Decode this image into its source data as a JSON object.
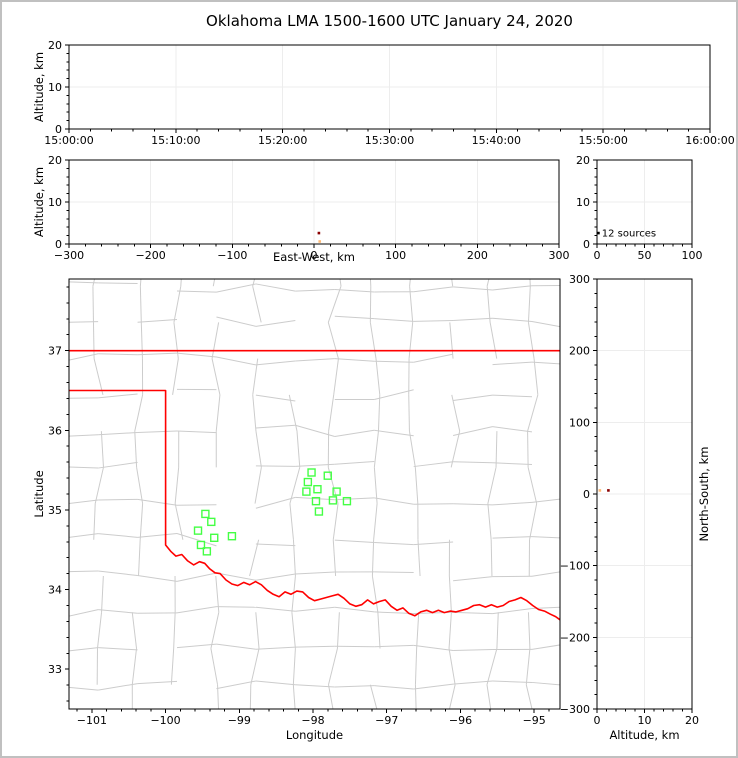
{
  "title": "Oklahoma LMA 1500-1600 UTC January 24, 2020",
  "colors": {
    "page_border": "#c0c0c0",
    "frame": "#000000",
    "grid": "#ededed",
    "county": "#cccccc",
    "state_border": "#ff0000",
    "green": "#44ff44",
    "darkred": "#8b0000",
    "orange": "#ffbb77",
    "black": "#000000",
    "text": "#000000"
  },
  "chart_data": [
    {
      "id": "time-altitude",
      "type": "scatter",
      "xlabel": "",
      "ylabel": "Altitude, km",
      "xlim": [
        0,
        3600
      ],
      "xticks": [
        0,
        600,
        1200,
        1800,
        2400,
        3000,
        3600
      ],
      "xtick_labels": [
        "15:00:00",
        "15:10:00",
        "15:20:00",
        "15:30:00",
        "15:40:00",
        "15:50:00",
        "16:00:00"
      ],
      "ylim": [
        0,
        20
      ],
      "yticks": [
        0,
        10,
        20
      ],
      "grid": true,
      "points": []
    },
    {
      "id": "eastwest-altitude",
      "type": "scatter",
      "xlabel": "East-West, km",
      "ylabel": "Altitude, km",
      "xlim": [
        -300,
        300
      ],
      "xticks": [
        -300,
        -200,
        -100,
        0,
        100,
        200,
        300
      ],
      "ylim": [
        0,
        20
      ],
      "yticks": [
        0,
        10,
        20
      ],
      "grid": true,
      "points": [
        {
          "x": 6,
          "y": 2.6,
          "color": "darkred"
        },
        {
          "x": 7,
          "y": 0.6,
          "color": "orange"
        }
      ]
    },
    {
      "id": "source-count",
      "type": "scatter",
      "xlabel": "",
      "ylabel": "",
      "xlim": [
        0,
        100
      ],
      "xticks": [
        0,
        50,
        100
      ],
      "ylim": [
        0,
        20
      ],
      "yticks": [
        0,
        10,
        20
      ],
      "grid": true,
      "annotation": "12 sources",
      "annotation_xy": [
        5,
        2.6
      ],
      "points": [
        {
          "x": 1.5,
          "y": 2.6,
          "color": "black"
        }
      ]
    },
    {
      "id": "plan-view-map",
      "type": "scatter",
      "xlabel": "Longitude",
      "ylabel": "Latitude",
      "xlim": [
        -101.31,
        -94.65
      ],
      "xticks": [
        -101,
        -100,
        -99,
        -98,
        -97,
        -96,
        -95
      ],
      "ylim": [
        32.5,
        37.9
      ],
      "yticks": [
        33,
        34,
        35,
        36,
        37
      ],
      "grid": false,
      "source_squares": [
        [
          -99.46,
          34.95
        ],
        [
          -99.38,
          34.85
        ],
        [
          -99.56,
          34.74
        ],
        [
          -99.34,
          34.65
        ],
        [
          -99.1,
          34.67
        ],
        [
          -99.52,
          34.56
        ],
        [
          -99.44,
          34.48
        ],
        [
          -98.02,
          35.47
        ],
        [
          -97.8,
          35.43
        ],
        [
          -98.07,
          35.35
        ],
        [
          -97.94,
          35.26
        ],
        [
          -98.09,
          35.23
        ],
        [
          -97.68,
          35.23
        ],
        [
          -97.96,
          35.11
        ],
        [
          -97.73,
          35.12
        ],
        [
          -97.54,
          35.11
        ],
        [
          -97.92,
          34.98
        ]
      ],
      "state_border_polylines": [
        [
          [
            -101.31,
            37.0
          ],
          [
            -94.65,
            37.0
          ]
        ],
        [
          [
            -94.62,
            37.0
          ],
          [
            -94.62,
            36.38
          ]
        ],
        [
          [
            -101.31,
            36.5
          ],
          [
            -100.0,
            36.5
          ],
          [
            -100.0,
            34.56
          ],
          [
            -99.93,
            34.48
          ],
          [
            -99.86,
            34.42
          ],
          [
            -99.78,
            34.44
          ],
          [
            -99.7,
            34.36
          ],
          [
            -99.62,
            34.31
          ],
          [
            -99.54,
            34.35
          ],
          [
            -99.47,
            34.33
          ],
          [
            -99.4,
            34.26
          ],
          [
            -99.33,
            34.21
          ],
          [
            -99.26,
            34.2
          ],
          [
            -99.18,
            34.12
          ],
          [
            -99.1,
            34.07
          ],
          [
            -99.02,
            34.05
          ],
          [
            -98.94,
            34.09
          ],
          [
            -98.86,
            34.06
          ],
          [
            -98.78,
            34.1
          ],
          [
            -98.7,
            34.06
          ],
          [
            -98.62,
            33.99
          ],
          [
            -98.54,
            33.94
          ],
          [
            -98.46,
            33.91
          ],
          [
            -98.38,
            33.97
          ],
          [
            -98.3,
            33.94
          ],
          [
            -98.22,
            33.98
          ],
          [
            -98.14,
            33.97
          ],
          [
            -98.06,
            33.9
          ],
          [
            -97.98,
            33.86
          ],
          [
            -97.9,
            33.88
          ],
          [
            -97.82,
            33.9
          ],
          [
            -97.74,
            33.92
          ],
          [
            -97.66,
            33.94
          ],
          [
            -97.58,
            33.89
          ],
          [
            -97.5,
            33.82
          ],
          [
            -97.42,
            33.79
          ],
          [
            -97.34,
            33.81
          ],
          [
            -97.26,
            33.87
          ],
          [
            -97.18,
            33.82
          ],
          [
            -97.1,
            33.85
          ],
          [
            -97.02,
            33.87
          ],
          [
            -96.94,
            33.79
          ],
          [
            -96.86,
            33.74
          ],
          [
            -96.78,
            33.77
          ],
          [
            -96.7,
            33.7
          ],
          [
            -96.62,
            33.67
          ],
          [
            -96.54,
            33.72
          ],
          [
            -96.46,
            33.74
          ],
          [
            -96.38,
            33.71
          ],
          [
            -96.3,
            33.74
          ],
          [
            -96.22,
            33.71
          ],
          [
            -96.14,
            33.73
          ],
          [
            -96.06,
            33.72
          ],
          [
            -95.98,
            33.74
          ],
          [
            -95.9,
            33.76
          ],
          [
            -95.82,
            33.8
          ],
          [
            -95.74,
            33.81
          ],
          [
            -95.66,
            33.78
          ],
          [
            -95.58,
            33.81
          ],
          [
            -95.5,
            33.78
          ],
          [
            -95.42,
            33.8
          ],
          [
            -95.34,
            33.85
          ],
          [
            -95.26,
            33.87
          ],
          [
            -95.18,
            33.9
          ],
          [
            -95.1,
            33.86
          ],
          [
            -95.02,
            33.8
          ],
          [
            -94.94,
            33.75
          ],
          [
            -94.86,
            33.73
          ],
          [
            -94.78,
            33.69
          ],
          [
            -94.71,
            33.66
          ],
          [
            -94.65,
            33.62
          ]
        ]
      ],
      "points": []
    },
    {
      "id": "northsouth-altitude",
      "type": "scatter",
      "xlabel": "Altitude, km",
      "ylabel": "North-South, km",
      "xlim": [
        0,
        20
      ],
      "xticks": [
        0,
        10,
        20
      ],
      "ylim": [
        -300,
        300
      ],
      "yticks": [
        -300,
        -200,
        -100,
        0,
        100,
        200,
        300
      ],
      "grid": true,
      "points": [
        {
          "x": 0.6,
          "y": 5,
          "color": "orange"
        },
        {
          "x": 2.4,
          "y": 5,
          "color": "darkred"
        }
      ]
    }
  ]
}
